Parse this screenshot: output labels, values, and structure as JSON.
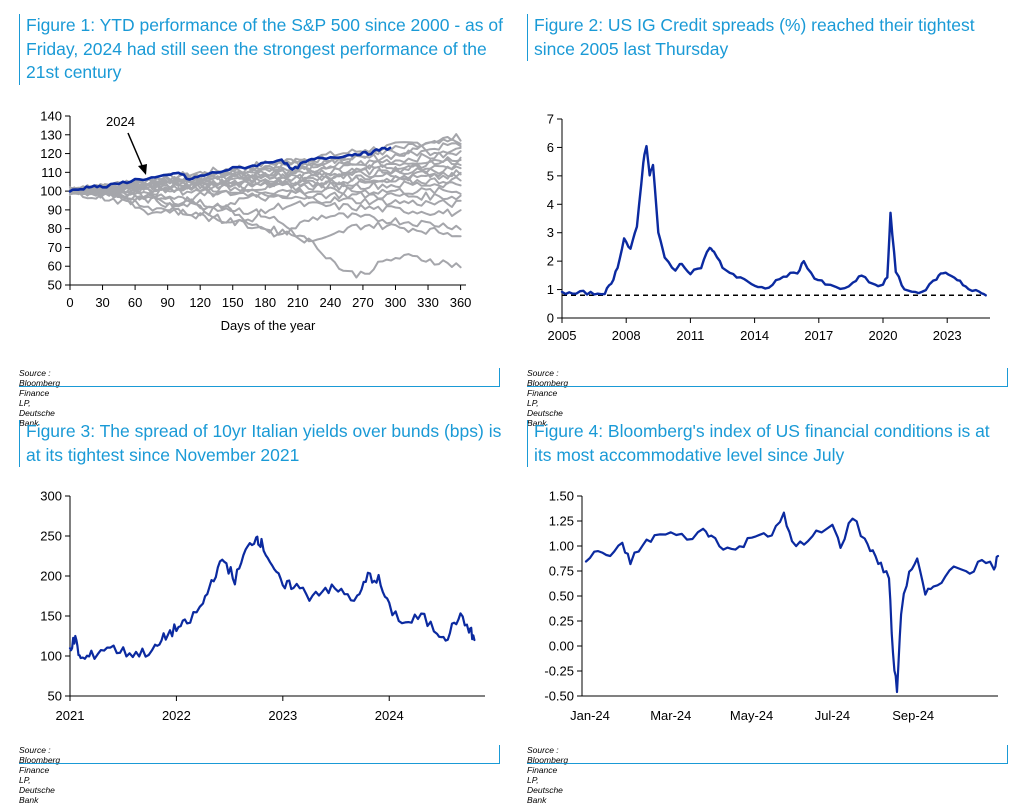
{
  "colors": {
    "accent": "#1a9ad6",
    "series": "#0b2aa0",
    "grey": "#a5a6ab",
    "axis": "#000000"
  },
  "figures": [
    {
      "title": "Figure 1: YTD performance of the S&P 500 since 2000 - as of Friday, 2024 had still seen the strongest performance of the 21st century",
      "source": "Source : Bloomberg Finance LP, Deutsche Bank"
    },
    {
      "title": "Figure 2: US IG Credit spreads (%) reached their tightest since 2005 last Thursday",
      "source": "Source : Bloomberg Finance LP, Deutsche Bank"
    },
    {
      "title": "Figure 3: The spread of 10yr Italian yields over bunds (bps) is at its tightest since November 2021",
      "source": "Source : Bloomberg Finance LP, Deutsche Bank"
    },
    {
      "title": "Figure 4: Bloomberg's index of US financial conditions is at its most accommodative level since July",
      "source": "Source : Bloomberg Finance LP, Deutsche Bank"
    }
  ],
  "chart_data": [
    {
      "type": "line",
      "title": "Figure 1: YTD performance of the S&P 500 since 2000 - as of Friday, 2024 had still seen the strongest performance of the 21st century",
      "xlabel": "Days of the year",
      "ylabel": "",
      "xlim": [
        0,
        365
      ],
      "ylim": [
        50,
        140
      ],
      "xticks": [
        0,
        30,
        60,
        90,
        120,
        150,
        180,
        210,
        240,
        270,
        300,
        330,
        360
      ],
      "yticks": [
        50,
        60,
        70,
        80,
        90,
        100,
        110,
        120,
        130,
        140
      ],
      "annotation": "2024",
      "grey_series_finals": [
        129,
        127,
        125,
        123,
        120,
        118,
        116,
        114,
        112,
        110,
        108,
        106,
        104,
        100,
        97,
        93,
        88,
        81,
        77,
        60
      ],
      "grey_series_troughs": [
        null,
        null,
        null,
        null,
        null,
        null,
        null,
        null,
        null,
        null,
        null,
        null,
        null,
        null,
        86,
        84,
        80,
        74,
        70,
        52
      ],
      "series": [
        {
          "name": "2024",
          "x": [
            0,
            10,
            20,
            30,
            45,
            60,
            75,
            90,
            100,
            110,
            120,
            135,
            150,
            165,
            180,
            195,
            205,
            215,
            225,
            240,
            255,
            265,
            275,
            285,
            295
          ],
          "values": [
            100,
            101,
            103,
            102,
            104,
            106,
            107,
            108,
            110,
            106,
            108,
            110,
            112,
            113,
            115,
            117,
            111,
            115,
            117,
            118,
            119,
            120,
            120,
            122,
            123
          ]
        }
      ]
    },
    {
      "type": "line",
      "title": "Figure 2: US IG Credit spreads (%) reached their tightest since 2005 last Thursday",
      "xlim": [
        2005,
        2025
      ],
      "ylim": [
        0,
        7
      ],
      "xticks": [
        2005,
        2008,
        2011,
        2014,
        2017,
        2020,
        2023
      ],
      "yticks": [
        0,
        1,
        2,
        3,
        4,
        5,
        6,
        7
      ],
      "reference_line": 0.8,
      "series": [
        {
          "name": "US IG spread",
          "x": [
            2005.0,
            2005.5,
            2006.0,
            2006.5,
            2007.0,
            2007.3,
            2007.6,
            2007.9,
            2008.2,
            2008.5,
            2008.8,
            2008.95,
            2009.1,
            2009.25,
            2009.5,
            2009.8,
            2010.3,
            2010.6,
            2011.0,
            2011.5,
            2011.9,
            2012.1,
            2012.5,
            2013.0,
            2013.5,
            2014.0,
            2014.5,
            2015.0,
            2015.5,
            2016.0,
            2016.3,
            2016.8,
            2017.3,
            2018.0,
            2018.6,
            2019.0,
            2019.5,
            2019.9,
            2020.2,
            2020.35,
            2020.6,
            2021.0,
            2021.5,
            2022.0,
            2022.5,
            2022.8,
            2023.2,
            2023.6,
            2024.0,
            2024.5,
            2024.8
          ],
          "values": [
            0.9,
            0.85,
            0.9,
            0.85,
            0.9,
            1.2,
            1.8,
            2.8,
            2.4,
            3.2,
            5.5,
            6.1,
            5.0,
            5.4,
            3.0,
            2.1,
            1.7,
            1.9,
            1.6,
            1.8,
            2.5,
            2.3,
            1.8,
            1.5,
            1.4,
            1.1,
            1.0,
            1.3,
            1.5,
            1.6,
            2.0,
            1.4,
            1.2,
            1.0,
            1.2,
            1.5,
            1.2,
            1.1,
            1.4,
            3.7,
            1.6,
            1.0,
            0.9,
            1.0,
            1.4,
            1.6,
            1.5,
            1.3,
            1.0,
            0.9,
            0.8
          ]
        }
      ]
    },
    {
      "type": "line",
      "title": "Figure 3: The spread of 10yr Italian yields over bunds (bps) is at its tightest since November 2021",
      "xlim": [
        2021,
        2024.9
      ],
      "ylim": [
        50,
        300
      ],
      "xticks": [
        2021,
        2022,
        2023,
        2024
      ],
      "yticks": [
        50,
        100,
        150,
        200,
        250,
        300
      ],
      "series": [
        {
          "name": "BTP-Bund spread",
          "x": [
            2021.0,
            2021.05,
            2021.1,
            2021.2,
            2021.35,
            2021.5,
            2021.65,
            2021.8,
            2021.9,
            2022.0,
            2022.1,
            2022.25,
            2022.35,
            2022.45,
            2022.55,
            2022.65,
            2022.75,
            2022.8,
            2022.9,
            2023.0,
            2023.1,
            2023.25,
            2023.4,
            2023.55,
            2023.7,
            2023.8,
            2023.9,
            2024.0,
            2024.15,
            2024.3,
            2024.45,
            2024.55,
            2024.65,
            2024.75,
            2024.8
          ],
          "values": [
            112,
            120,
            95,
            100,
            112,
            105,
            103,
            108,
            125,
            135,
            140,
            165,
            200,
            220,
            195,
            230,
            250,
            240,
            215,
            185,
            190,
            175,
            185,
            180,
            170,
            200,
            195,
            160,
            140,
            150,
            130,
            125,
            150,
            135,
            120
          ]
        }
      ]
    },
    {
      "type": "line",
      "title": "Figure 4: Bloomberg's index of US financial conditions is at its most accommodative level since July",
      "xlim": [
        0,
        10
      ],
      "ylim": [
        -0.5,
        1.5
      ],
      "xticks": [
        "Jan-24",
        "Mar-24",
        "May-24",
        "Jul-24",
        "Sep-24"
      ],
      "xtick_positions": [
        0,
        2,
        4,
        6,
        8
      ],
      "yticks": [
        "1.50",
        "1.25",
        "1.00",
        "0.75",
        "0.50",
        "0.25",
        "0.00",
        "-0.25",
        "-0.50"
      ],
      "ytick_values": [
        1.5,
        1.25,
        1.0,
        0.75,
        0.5,
        0.25,
        0.0,
        -0.25,
        -0.5
      ],
      "series": [
        {
          "name": "US financial conditions",
          "x": [
            -0.1,
            0.2,
            0.5,
            0.8,
            1.0,
            1.3,
            1.6,
            2.0,
            2.4,
            2.8,
            3.0,
            3.3,
            3.6,
            3.9,
            4.2,
            4.5,
            4.8,
            5.0,
            5.3,
            5.6,
            6.0,
            6.2,
            6.5,
            6.8,
            7.0,
            7.2,
            7.4,
            7.5,
            7.6,
            7.7,
            7.9,
            8.1,
            8.3,
            8.5,
            8.8,
            9.1,
            9.4,
            9.7,
            10.0,
            10.1
          ],
          "values": [
            0.85,
            0.95,
            0.9,
            1.0,
            0.85,
            1.0,
            1.1,
            1.12,
            1.08,
            1.15,
            1.1,
            1.0,
            0.95,
            1.05,
            1.15,
            1.1,
            1.3,
            1.05,
            1.0,
            1.12,
            1.2,
            1.0,
            1.3,
            1.05,
            0.95,
            0.8,
            0.7,
            -0.1,
            -0.45,
            0.35,
            0.75,
            0.85,
            0.5,
            0.6,
            0.7,
            0.8,
            0.75,
            0.85,
            0.8,
            0.9
          ]
        }
      ]
    }
  ]
}
